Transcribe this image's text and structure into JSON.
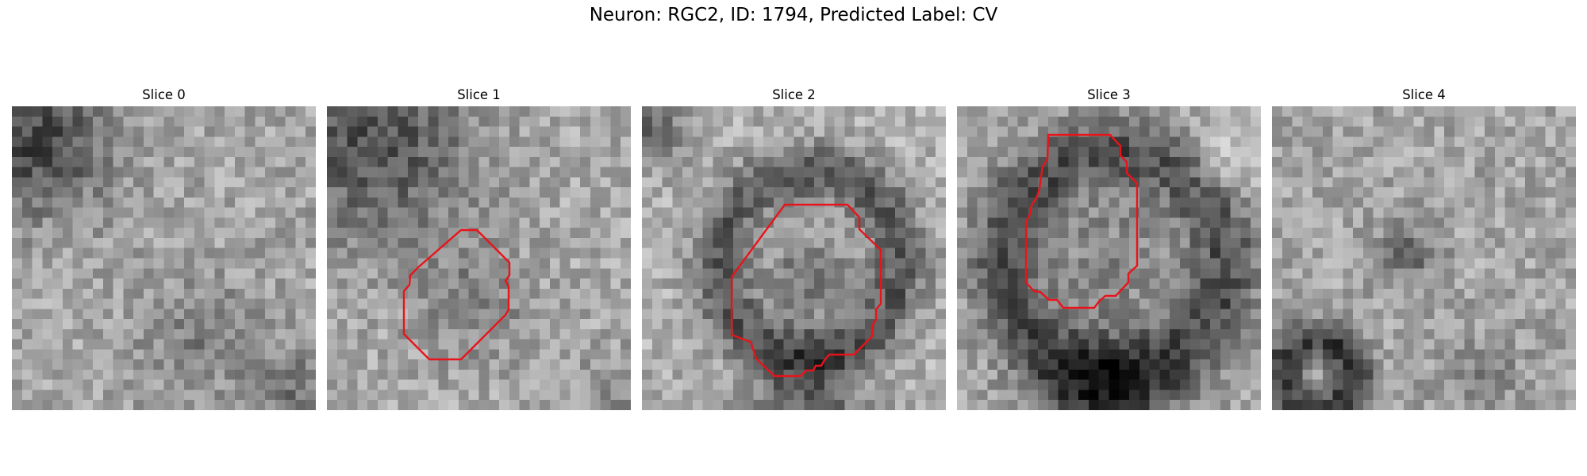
{
  "figure": {
    "title": "Neuron: RGC2, ID: 1794, Predicted Label: CV"
  },
  "slices": [
    {
      "label": "Slice 0",
      "has_contour": false
    },
    {
      "label": "Slice 1",
      "has_contour": true
    },
    {
      "label": "Slice 2",
      "has_contour": true
    },
    {
      "label": "Slice 3",
      "has_contour": true
    },
    {
      "label": "Slice 4",
      "has_contour": false
    }
  ],
  "colors": {
    "contour": "#e8141b",
    "background": "#ffffff"
  },
  "colormap": "grayscale"
}
